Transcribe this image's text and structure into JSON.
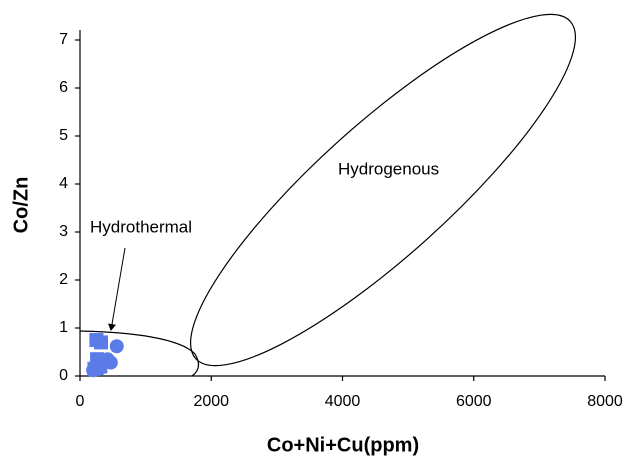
{
  "chart_data": {
    "type": "scatter",
    "x_label": "Co+Ni+Cu(ppm)",
    "y_label": "Co/Zn",
    "annotations": [
      "Hydrogenous",
      "Hydrothermal"
    ],
    "xlim": [
      0,
      8000
    ],
    "xticks": [
      0,
      2000,
      4000,
      6000,
      8000
    ],
    "ylim": [
      0,
      7.5
    ],
    "yticks": [
      0,
      1,
      2,
      3,
      4,
      5,
      6,
      7
    ],
    "series": [
      {
        "marker": "square",
        "color": "#5b7be8",
        "x": [
          250,
          320,
          260,
          310,
          220
        ],
        "y": [
          0.75,
          0.7,
          0.35,
          0.2,
          0.15
        ]
      },
      {
        "marker": "circle",
        "color": "#5b7be8",
        "x": [
          560,
          420,
          300,
          470,
          200
        ],
        "y": [
          0.62,
          0.35,
          0.15,
          0.28,
          0.12
        ]
      }
    ]
  }
}
